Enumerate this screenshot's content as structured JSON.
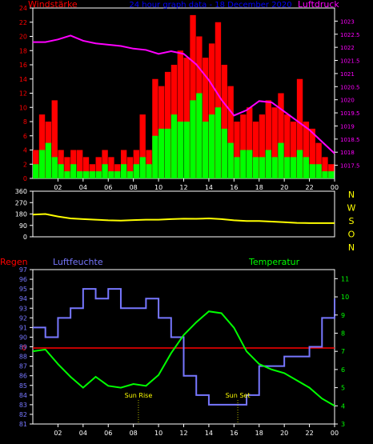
{
  "colors": {
    "wind_max": "#ff0000",
    "wind_avg": "#00ff00",
    "pressure": "#ff00ff",
    "direction": "#ffff00",
    "humidity": "#7777ff",
    "temperature": "#00ff00",
    "rain": "#ff0000",
    "title": "#0000ff",
    "frame": "#ffffff",
    "direction_labels": "#ffff00",
    "sun": "#ffff00"
  },
  "chart_data": [
    {
      "type": "bar",
      "title": "24 hour graph data - 18 December 2020",
      "left_axis_label": "Windstärke",
      "right_axis_label": "Luftdruck",
      "x_ticks": [
        "02",
        "04",
        "06",
        "08",
        "10",
        "12",
        "14",
        "16",
        "18",
        "20",
        "22",
        "00"
      ],
      "x_range": [
        0,
        24
      ],
      "wind_ylim": [
        0,
        24
      ],
      "wind_yticks": [
        0,
        2,
        4,
        6,
        8,
        10,
        12,
        14,
        16,
        18,
        20,
        22,
        24
      ],
      "pressure_ylim": [
        1017.0,
        1023.5
      ],
      "pressure_yticks": [
        "1017.5",
        "1018",
        "1018.5",
        "1019",
        "1019.5",
        "1020",
        "1020.5",
        "1021",
        "1021.5",
        "1022",
        "1022.5",
        "1023"
      ],
      "series": [
        {
          "name": "Windstärke (gust)",
          "x": [
            0,
            0.5,
            1,
            1.5,
            2,
            2.5,
            3,
            3.5,
            4,
            4.5,
            5,
            5.5,
            6,
            6.5,
            7,
            7.5,
            8,
            8.5,
            9,
            9.5,
            10,
            10.5,
            11,
            11.5,
            12,
            12.5,
            13,
            13.5,
            14,
            14.5,
            15,
            15.5,
            16,
            16.5,
            17,
            17.5,
            18,
            18.5,
            19,
            19.5,
            20,
            20.5,
            21,
            21.5,
            22,
            22.5,
            23,
            23.5
          ],
          "values": [
            4,
            9,
            8,
            11,
            4,
            3,
            4,
            4,
            3,
            2,
            3,
            4,
            3,
            2,
            4,
            3,
            4,
            9,
            4,
            14,
            13,
            15,
            16,
            18,
            17,
            23,
            20,
            17,
            19,
            22,
            16,
            13,
            8,
            9,
            10,
            8,
            9,
            11,
            10,
            12,
            9,
            8,
            14,
            8,
            7,
            5,
            3,
            2
          ]
        },
        {
          "name": "Windstärke (avg)",
          "x": [
            0,
            0.5,
            1,
            1.5,
            2,
            2.5,
            3,
            3.5,
            4,
            4.5,
            5,
            5.5,
            6,
            6.5,
            7,
            7.5,
            8,
            8.5,
            9,
            9.5,
            10,
            10.5,
            11,
            11.5,
            12,
            12.5,
            13,
            13.5,
            14,
            14.5,
            15,
            15.5,
            16,
            16.5,
            17,
            17.5,
            18,
            18.5,
            19,
            19.5,
            20,
            20.5,
            21,
            21.5,
            22,
            22.5,
            23,
            23.5
          ],
          "values": [
            2,
            4,
            5,
            3,
            2,
            1,
            2,
            1,
            1,
            1,
            1,
            2,
            1,
            1,
            2,
            1,
            2,
            3,
            2,
            6,
            7,
            7,
            9,
            8,
            8,
            11,
            12,
            8,
            9,
            10,
            7,
            5,
            3,
            4,
            4,
            3,
            3,
            4,
            3,
            5,
            3,
            3,
            4,
            3,
            2,
            2,
            1,
            1
          ]
        },
        {
          "name": "Luftdruck",
          "x": [
            0,
            1,
            2,
            3,
            4,
            5,
            6,
            7,
            8,
            9,
            10,
            11,
            12,
            13,
            14,
            15,
            16,
            17,
            18,
            19,
            20,
            21,
            22,
            23,
            24
          ],
          "values": [
            1022.2,
            1022.2,
            1022.3,
            1022.45,
            1022.25,
            1022.15,
            1022.1,
            1022.05,
            1021.95,
            1021.9,
            1021.75,
            1021.85,
            1021.75,
            1021.35,
            1020.75,
            1020.0,
            1019.4,
            1019.6,
            1019.95,
            1019.9,
            1019.55,
            1019.2,
            1018.85,
            1018.4,
            1017.95
          ]
        }
      ]
    },
    {
      "type": "line",
      "right_labels": [
        "N",
        "W",
        "S",
        "O",
        "N"
      ],
      "x_range": [
        0,
        24
      ],
      "ylim": [
        0,
        360
      ],
      "yticks": [
        0,
        90,
        180,
        270,
        360
      ],
      "series": [
        {
          "name": "Windrichtung",
          "x": [
            0,
            1,
            2,
            3,
            4,
            5,
            6,
            7,
            8,
            9,
            10,
            11,
            12,
            13,
            14,
            15,
            16,
            17,
            18,
            19,
            20,
            21,
            22,
            23,
            24
          ],
          "values": [
            175,
            180,
            160,
            145,
            140,
            135,
            130,
            128,
            132,
            135,
            135,
            140,
            143,
            142,
            145,
            140,
            130,
            125,
            125,
            120,
            115,
            110,
            108,
            108,
            108
          ]
        }
      ]
    },
    {
      "type": "line",
      "left_axis_label": "Regen",
      "humidity_label": "Luftfeuchte",
      "temperature_label": "Temperatur",
      "x_ticks": [
        "02",
        "04",
        "06",
        "08",
        "10",
        "12",
        "14",
        "16",
        "18",
        "20",
        "22",
        "00"
      ],
      "x_range": [
        0,
        24
      ],
      "humidity_ylim": [
        81,
        97
      ],
      "humidity_yticks": [
        81,
        82,
        83,
        84,
        85,
        86,
        87,
        88,
        89,
        90,
        91,
        92,
        93,
        94,
        95,
        96,
        97
      ],
      "temperature_ylim": [
        3,
        11.5
      ],
      "temperature_yticks": [
        3,
        4,
        5,
        6,
        7,
        8,
        9,
        10,
        11
      ],
      "rain_value": 0,
      "annotations": [
        {
          "text": "Sun Rise",
          "x": 8.4
        },
        {
          "text": "Sun Set",
          "x": 16.3
        }
      ],
      "series": [
        {
          "name": "Luftfeuchte",
          "x": [
            0,
            1,
            2,
            3,
            4,
            5,
            6,
            7,
            8,
            9,
            10,
            11,
            12,
            13,
            14,
            15,
            16,
            17,
            18,
            19,
            20,
            21,
            22,
            23,
            24
          ],
          "values": [
            91,
            90,
            92,
            93,
            95,
            94,
            95,
            93,
            93,
            94,
            92,
            90,
            86,
            84,
            83,
            83,
            83,
            84,
            87,
            87,
            88,
            88,
            89,
            92,
            94
          ]
        },
        {
          "name": "Temperatur",
          "x": [
            0,
            1,
            2,
            3,
            4,
            5,
            6,
            7,
            8,
            9,
            10,
            11,
            12,
            13,
            14,
            15,
            16,
            17,
            18,
            19,
            20,
            21,
            22,
            23,
            24
          ],
          "values": [
            7.0,
            7.1,
            6.3,
            5.6,
            5.0,
            5.6,
            5.1,
            5.0,
            5.2,
            5.1,
            5.7,
            6.9,
            7.9,
            8.6,
            9.2,
            9.1,
            8.3,
            7.0,
            6.3,
            6.0,
            5.8,
            5.4,
            5.0,
            4.4,
            4.0
          ]
        }
      ]
    }
  ]
}
